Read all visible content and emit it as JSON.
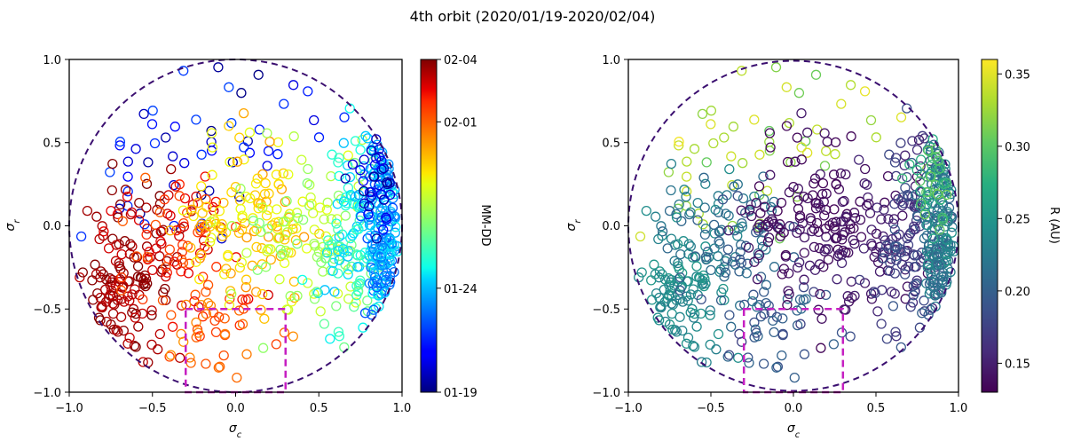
{
  "figure": {
    "title": "4th orbit (2020/01/19-2020/02/04)"
  },
  "chart_data": [
    {
      "type": "scatter",
      "title": "",
      "xlabel": "σ_c",
      "ylabel": "σ_r",
      "xlim": [
        -1.0,
        1.0
      ],
      "ylim": [
        -1.0,
        1.0
      ],
      "xticks": [
        "−1.0",
        "−0.5",
        "0.0",
        "0.5",
        "1.0"
      ],
      "yticks": [
        "−1.0",
        "−0.5",
        "0.0",
        "0.5",
        "1.0"
      ],
      "grid": false,
      "marker": "open circle",
      "colorbar": {
        "label": "MM-DD",
        "colormap": "jet",
        "range_days": [
          0,
          16
        ],
        "ticks": [
          {
            "day": 0,
            "label": "01-19"
          },
          {
            "day": 5,
            "label": "01-24"
          },
          {
            "day": 13,
            "label": "02-01"
          },
          {
            "day": 16,
            "label": "02-04"
          }
        ]
      },
      "overlays": {
        "unit_circle": {
          "radius": 1.0,
          "style": "dashed",
          "color": "#3b0f70"
        },
        "box": {
          "x": [
            -0.3,
            0.3
          ],
          "y": [
            -1.0,
            -0.5
          ],
          "style": "dashed",
          "color": "#c61fc2"
        }
      },
      "regions": [
        {
          "label": "early dates (blue) scattered, upper left and upper middle",
          "cx": -0.3,
          "cy": 0.45,
          "sx": 0.45,
          "sy": 0.28,
          "v": [
            0,
            3
          ],
          "n": 55
        },
        {
          "label": "latest dates (dark red), lower left",
          "cx": -0.72,
          "cy": -0.45,
          "sx": 0.16,
          "sy": 0.2,
          "v": [
            15,
            16
          ],
          "n": 110
        },
        {
          "label": "dark red upper left",
          "cx": -0.6,
          "cy": 0.05,
          "sx": 0.22,
          "sy": 0.18,
          "v": [
            14.5,
            16
          ],
          "n": 35
        },
        {
          "label": "red/orange mid left",
          "cx": -0.32,
          "cy": -0.15,
          "sx": 0.18,
          "sy": 0.25,
          "v": [
            13,
            15
          ],
          "n": 75
        },
        {
          "label": "orange lower middle",
          "cx": -0.1,
          "cy": -0.65,
          "sx": 0.2,
          "sy": 0.18,
          "v": [
            12,
            14
          ],
          "n": 40
        },
        {
          "label": "yellow center",
          "cx": 0.05,
          "cy": 0.0,
          "sx": 0.2,
          "sy": 0.25,
          "v": [
            10,
            12
          ],
          "n": 120
        },
        {
          "label": "yellow-green right center",
          "cx": 0.38,
          "cy": -0.05,
          "sx": 0.2,
          "sy": 0.32,
          "v": [
            8,
            10
          ],
          "n": 90
        },
        {
          "label": "green/cyan near right edge",
          "cx": 0.72,
          "cy": -0.15,
          "sx": 0.12,
          "sy": 0.35,
          "v": [
            5,
            8
          ],
          "n": 110
        },
        {
          "label": "cyan/blue dense right edge",
          "cx": 0.9,
          "cy": 0.0,
          "sx": 0.06,
          "sy": 0.4,
          "v": [
            3,
            6
          ],
          "n": 170
        },
        {
          "label": "blue top right edge",
          "cx": 0.88,
          "cy": 0.25,
          "sx": 0.08,
          "sy": 0.15,
          "v": [
            0,
            2
          ],
          "n": 35
        }
      ]
    },
    {
      "type": "scatter",
      "title": "",
      "xlabel": "σ_c",
      "ylabel": "σ_r",
      "xlim": [
        -1.0,
        1.0
      ],
      "ylim": [
        -1.0,
        1.0
      ],
      "xticks": [
        "−1.0",
        "−0.5",
        "0.0",
        "0.5",
        "1.0"
      ],
      "yticks": [
        "−1.0",
        "−0.5",
        "0.0",
        "0.5",
        "1.0"
      ],
      "grid": false,
      "marker": "open circle",
      "colorbar": {
        "label": "R (AU)",
        "colormap": "viridis",
        "range": [
          0.13,
          0.36
        ],
        "ticks": [
          {
            "value": 0.15,
            "label": "0.15"
          },
          {
            "value": 0.2,
            "label": "0.20"
          },
          {
            "value": 0.25,
            "label": "0.25"
          },
          {
            "value": 0.3,
            "label": "0.30"
          },
          {
            "value": 0.35,
            "label": "0.35"
          }
        ]
      },
      "overlays": {
        "unit_circle": {
          "radius": 1.0,
          "style": "dashed",
          "color": "#3b0f70"
        },
        "box": {
          "x": [
            -0.3,
            0.3
          ],
          "y": [
            -1.0,
            -0.5
          ],
          "style": "dashed",
          "color": "#c61fc2"
        }
      },
      "regions": [
        {
          "label": "far distances (yellow-green), upper left",
          "cx": -0.3,
          "cy": 0.45,
          "sx": 0.45,
          "sy": 0.28,
          "v": [
            0.3,
            0.36
          ],
          "n": 55
        },
        {
          "label": "teal, lower left",
          "cx": -0.72,
          "cy": -0.45,
          "sx": 0.16,
          "sy": 0.2,
          "v": [
            0.22,
            0.26
          ],
          "n": 110
        },
        {
          "label": "teal upper left",
          "cx": -0.6,
          "cy": 0.05,
          "sx": 0.22,
          "sy": 0.18,
          "v": [
            0.2,
            0.25
          ],
          "n": 35
        },
        {
          "label": "blue-teal mid left",
          "cx": -0.32,
          "cy": -0.15,
          "sx": 0.18,
          "sy": 0.25,
          "v": [
            0.18,
            0.23
          ],
          "n": 75
        },
        {
          "label": "blue lower middle",
          "cx": -0.1,
          "cy": -0.65,
          "sx": 0.2,
          "sy": 0.18,
          "v": [
            0.17,
            0.22
          ],
          "n": 40
        },
        {
          "label": "purple center (near perihelion)",
          "cx": 0.05,
          "cy": 0.0,
          "sx": 0.2,
          "sy": 0.25,
          "v": [
            0.13,
            0.15
          ],
          "n": 120
        },
        {
          "label": "purple right center",
          "cx": 0.38,
          "cy": -0.05,
          "sx": 0.2,
          "sy": 0.32,
          "v": [
            0.13,
            0.16
          ],
          "n": 90
        },
        {
          "label": "purple/blue near right edge",
          "cx": 0.72,
          "cy": -0.15,
          "sx": 0.12,
          "sy": 0.35,
          "v": [
            0.15,
            0.2
          ],
          "n": 110
        },
        {
          "label": "blue-green dense right edge",
          "cx": 0.9,
          "cy": 0.0,
          "sx": 0.06,
          "sy": 0.4,
          "v": [
            0.19,
            0.26
          ],
          "n": 170
        },
        {
          "label": "teal-green top right edge",
          "cx": 0.88,
          "cy": 0.25,
          "sx": 0.08,
          "sy": 0.15,
          "v": [
            0.26,
            0.32
          ],
          "n": 35
        }
      ]
    }
  ]
}
